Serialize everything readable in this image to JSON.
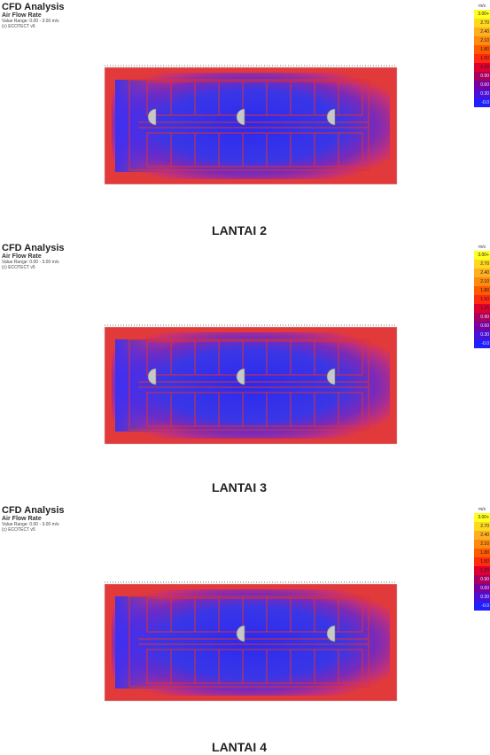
{
  "panels": [
    {
      "title": "CFD Analysis",
      "subtitle": "Air Flow Rate",
      "range": "Value Range: 0.00 - 3.00 m/s",
      "credit": "(c) ECOTECT v5",
      "legend": {
        "unit": "m/s",
        "labels": [
          "3.00+",
          "2.70",
          "2.40",
          "2.10",
          "1.80",
          "1.50",
          "1.20",
          "0.90",
          "0.60",
          "0.30",
          "-0.0"
        ]
      },
      "caption": "LANTAI 2"
    },
    {
      "title": "CFD Analysis",
      "subtitle": "Air Flow Rate",
      "range": "Value Range: 0.00 - 3.00 m/s",
      "credit": "(c) ECOTECT v5",
      "legend": {
        "unit": "m/s",
        "labels": [
          "3.00+",
          "2.70",
          "2.40",
          "2.10",
          "1.80",
          "1.50",
          "1.20",
          "0.90",
          "0.60",
          "0.30",
          "-0.0"
        ]
      },
      "caption": "LANTAI 3"
    },
    {
      "title": "CFD Analysis",
      "subtitle": "Air Flow Rate",
      "range": "Value Range: 0.00 - 3.00 m/s",
      "credit": "(c) ECOTECT v5",
      "legend": {
        "unit": "m/s",
        "labels": [
          "3.00+",
          "2.70",
          "2.40",
          "2.10",
          "1.80",
          "1.50",
          "1.20",
          "0.90",
          "0.60",
          "0.30",
          "-0.0"
        ]
      },
      "caption": "LANTAI 4"
    }
  ]
}
